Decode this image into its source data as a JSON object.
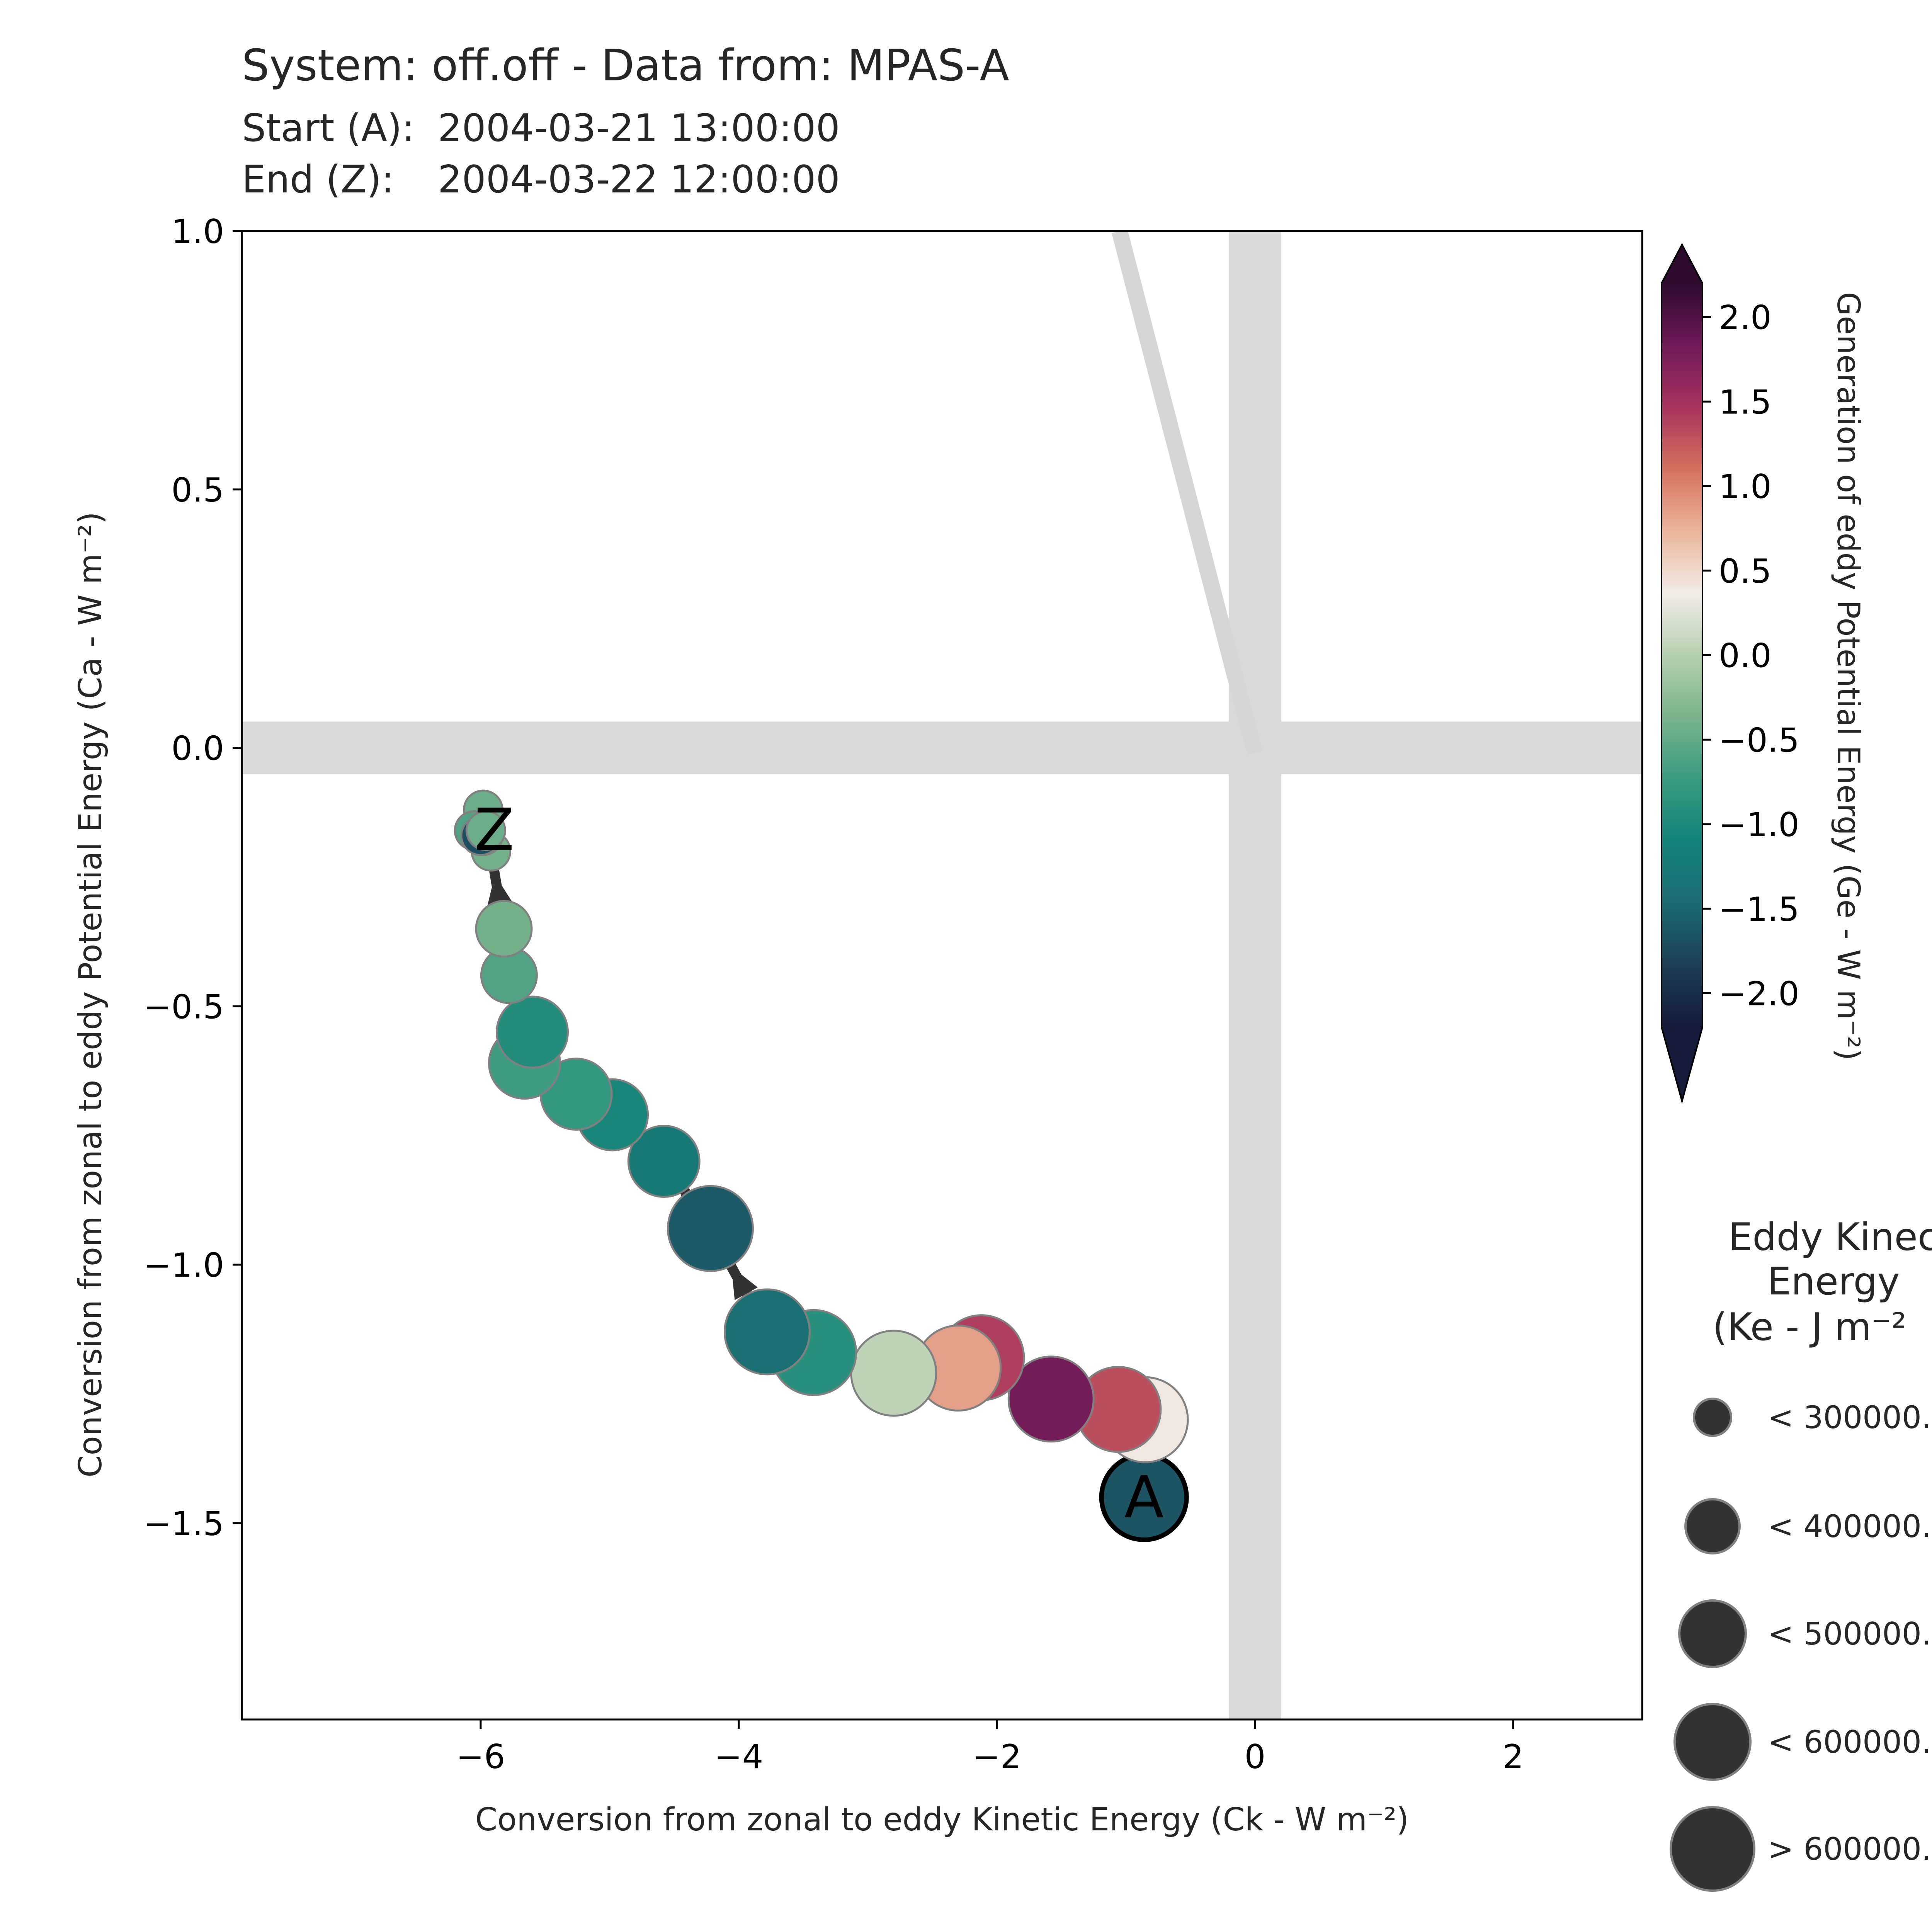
{
  "header": {
    "title": "System: off.off - Data from: MPAS-A",
    "start_label": "Start (A):",
    "start_value": "2004-03-21 13:00:00",
    "end_label": "End (Z):",
    "end_value": "2004-03-22 12:00:00"
  },
  "chart_data": {
    "type": "scatter",
    "title": "System: off.off - Data from: MPAS-A",
    "xlabel": "Conversion from zonal to eddy Kinetic Energy (Ck -  W m⁻²)",
    "ylabel": "Conversion from zonal to eddy Potential Energy (Ca -  W m⁻²)",
    "xlim": [
      -7.85,
      3.0
    ],
    "ylim": [
      -1.88,
      1.0
    ],
    "xticks": [
      -6,
      -4,
      -2,
      0,
      2
    ],
    "xtick_labels": [
      "−6",
      "−4",
      "−2",
      "0",
      "2"
    ],
    "yticks": [
      -1.5,
      -1.0,
      -0.5,
      0.0,
      0.5,
      1.0
    ],
    "ytick_labels": [
      "−1.5",
      "−1.0",
      "−0.5",
      "0.0",
      "0.5",
      "1.0"
    ],
    "grid": false,
    "reference_bands": {
      "x": 0.0,
      "y": 0.0,
      "color": "#d9d9d9"
    },
    "trend_line": {
      "from": [
        0.0,
        -0.01
      ],
      "to": [
        -1.05,
        1.0
      ],
      "color": "#d6d6d6"
    },
    "start_marker": "A",
    "end_marker": "Z",
    "points": [
      {
        "x": -0.86,
        "y": -1.45,
        "ge": -1.65,
        "ke_class": 3
      },
      {
        "x": -0.85,
        "y": -1.3,
        "ge": 0.4,
        "ke_class": 3
      },
      {
        "x": -1.06,
        "y": -1.28,
        "ge": 1.3,
        "ke_class": 3
      },
      {
        "x": -1.58,
        "y": -1.26,
        "ge": 1.8,
        "ke_class": 3
      },
      {
        "x": -2.12,
        "y": -1.18,
        "ge": 1.4,
        "ke_class": 3
      },
      {
        "x": -2.3,
        "y": -1.2,
        "ge": 0.85,
        "ke_class": 3
      },
      {
        "x": -2.8,
        "y": -1.21,
        "ge": 0.05,
        "ke_class": 3
      },
      {
        "x": -3.42,
        "y": -1.17,
        "ge": -0.9,
        "ke_class": 3
      },
      {
        "x": -3.78,
        "y": -1.13,
        "ge": -1.4,
        "ke_class": 3
      },
      {
        "x": -4.22,
        "y": -0.93,
        "ge": -1.6,
        "ke_class": 3
      },
      {
        "x": -4.58,
        "y": -0.8,
        "ge": -1.25,
        "ke_class": 2
      },
      {
        "x": -4.98,
        "y": -0.71,
        "ge": -1.05,
        "ke_class": 2
      },
      {
        "x": -5.26,
        "y": -0.67,
        "ge": -0.8,
        "ke_class": 2
      },
      {
        "x": -5.66,
        "y": -0.61,
        "ge": -0.7,
        "ke_class": 2
      },
      {
        "x": -5.6,
        "y": -0.55,
        "ge": -0.95,
        "ke_class": 2
      },
      {
        "x": -5.78,
        "y": -0.44,
        "ge": -0.6,
        "ke_class": 1
      },
      {
        "x": -5.82,
        "y": -0.35,
        "ge": -0.4,
        "ke_class": 1
      },
      {
        "x": -5.92,
        "y": -0.2,
        "ge": -0.4,
        "ke_class": 0
      },
      {
        "x": -5.98,
        "y": -0.12,
        "ge": -0.45,
        "ke_class": 0
      },
      {
        "x": -6.05,
        "y": -0.16,
        "ge": -0.6,
        "ke_class": 0
      },
      {
        "x": -5.98,
        "y": -0.17,
        "ge": -1.3,
        "ke_class": 0
      },
      {
        "x": -6.0,
        "y": -0.17,
        "ge": -1.7,
        "ke_class": 0
      },
      {
        "x": -5.96,
        "y": -0.16,
        "ge": -0.45,
        "ke_class": 0
      }
    ],
    "colorbar": {
      "label": "Generation of eddy Potential Energy (Ge -  W m⁻²)",
      "range": [
        -2.2,
        2.2
      ],
      "ticks": [
        2.0,
        1.5,
        1.0,
        0.5,
        0.0,
        -0.5,
        -1.0,
        -1.5,
        -2.0
      ],
      "tick_labels": [
        "2.0",
        "1.5",
        "1.0",
        "0.5",
        "0.0",
        "−0.5",
        "−1.0",
        "−1.5",
        "−2.0"
      ],
      "cmap": [
        "#15193a",
        "#1d3e55",
        "#1c6a72",
        "#138378",
        "#3a9a80",
        "#7ab38c",
        "#b6cfb0",
        "#f2ece8",
        "#ebb59b",
        "#d4715e",
        "#a8335e",
        "#6f1a57",
        "#2c0a2c"
      ],
      "extend": "both"
    },
    "size_legend": {
      "title": [
        "Eddy Kinec",
        "Energy",
        "(Ke -  J m⁻²"
      ],
      "entries": [
        "< 300000.",
        "< 400000.",
        "< 500000.",
        "< 600000.",
        "> 600000."
      ]
    }
  }
}
